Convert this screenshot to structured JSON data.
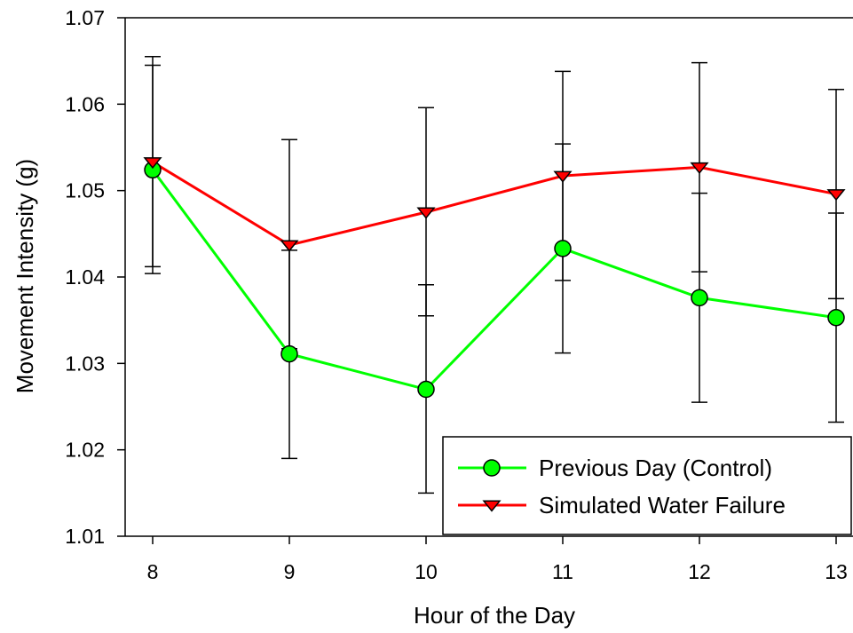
{
  "chart_data": {
    "type": "line",
    "xlabel": "Hour of the Day",
    "ylabel": "Movement Intensity (g)",
    "x": [
      8,
      9,
      10,
      11,
      12,
      13
    ],
    "xlim": [
      8,
      13
    ],
    "ylim": [
      1.01,
      1.07
    ],
    "xticks": [
      "8",
      "9",
      "10",
      "11",
      "12",
      "13"
    ],
    "yticks": [
      "1.01",
      "1.02",
      "1.03",
      "1.04",
      "1.05",
      "1.06",
      "1.07"
    ],
    "grid": false,
    "legend_position": "bottom-right",
    "series": [
      {
        "name": "Previous Day (Control)",
        "color": "#00ff00",
        "marker": "circle",
        "values": [
          1.0524,
          1.0311,
          1.027,
          1.0433,
          1.0376,
          1.0353
        ],
        "error_low": [
          1.0404,
          1.019,
          1.015,
          1.0312,
          1.0255,
          1.0232
        ],
        "error_high": [
          1.0645,
          1.0431,
          1.0391,
          1.0554,
          1.0497,
          1.0474
        ]
      },
      {
        "name": "Simulated Water Failure",
        "color": "#ff0000",
        "marker": "triangle-down",
        "values": [
          1.0533,
          1.0437,
          1.0475,
          1.0517,
          1.0527,
          1.0496
        ],
        "error_low": [
          1.0412,
          1.0317,
          1.0355,
          1.0396,
          1.0406,
          1.0375
        ],
        "error_high": [
          1.0655,
          1.0559,
          1.0596,
          1.0638,
          1.0648,
          1.0617
        ]
      }
    ]
  }
}
